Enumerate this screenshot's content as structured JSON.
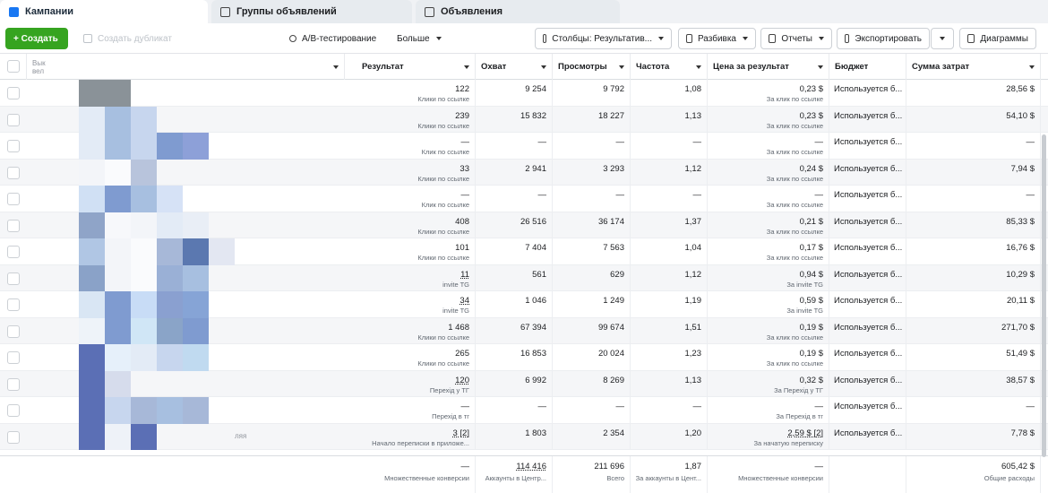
{
  "tabs": [
    {
      "label": "Кампании",
      "icon": "campaign-icon",
      "active": true
    },
    {
      "label": "Группы объявлений",
      "icon": "adsets-icon",
      "active": false
    },
    {
      "label": "Объявления",
      "icon": "ads-icon",
      "active": false
    }
  ],
  "toolbar": {
    "create": "+ Создать",
    "duplicate": "Создать дубликат",
    "ab_test": "A/B-тестирование",
    "more": "Больше",
    "columns": "Столбцы: Результатив...",
    "breakdown": "Разбивка",
    "reports": "Отчеты",
    "export": "Экспортировать",
    "charts": "Диаграммы"
  },
  "headers": {
    "name": "Вык",
    "name2": "вел",
    "result": "Результат",
    "reach": "Охват",
    "views": "Просмотры",
    "frequency": "Частота",
    "cost": "Цена за результат",
    "budget": "Бюджет",
    "spend": "Сумма затрат"
  },
  "rows": [
    {
      "result": "122",
      "result_sub": "Клики по ссылке",
      "reach": "9 254",
      "views": "9 792",
      "freq": "1,08",
      "cost": "0,23 $",
      "cost_sub": "За клик по ссылке",
      "budget": "Используется б...",
      "spend": "28,56 $"
    },
    {
      "result": "239",
      "result_sub": "Клики по ссылке",
      "reach": "15 832",
      "views": "18 227",
      "freq": "1,13",
      "cost": "0,23 $",
      "cost_sub": "За клик по ссылке",
      "budget": "Используется б...",
      "spend": "54,10 $"
    },
    {
      "result": "—",
      "result_sub": "Клик по ссылке",
      "reach": "—",
      "views": "—",
      "freq": "—",
      "cost": "—",
      "cost_sub": "За клик по ссылке",
      "budget": "Используется б...",
      "spend": "—"
    },
    {
      "result": "33",
      "result_sub": "Клики по ссылке",
      "reach": "2 941",
      "views": "3 293",
      "freq": "1,12",
      "cost": "0,24 $",
      "cost_sub": "За клик по ссылке",
      "budget": "Используется б...",
      "spend": "7,94 $"
    },
    {
      "result": "—",
      "result_sub": "Клик по ссылке",
      "reach": "—",
      "views": "—",
      "freq": "—",
      "cost": "—",
      "cost_sub": "За клик по ссылке",
      "budget": "Используется б...",
      "spend": "—"
    },
    {
      "result": "408",
      "result_sub": "Клики по ссылке",
      "reach": "26 516",
      "views": "36 174",
      "freq": "1,37",
      "cost": "0,21 $",
      "cost_sub": "За клик по ссылке",
      "budget": "Используется б...",
      "spend": "85,33 $"
    },
    {
      "result": "101",
      "result_sub": "Клики по ссылке",
      "reach": "7 404",
      "views": "7 563",
      "freq": "1,04",
      "cost": "0,17 $",
      "cost_sub": "За клик по ссылке",
      "budget": "Используется б...",
      "spend": "16,76 $"
    },
    {
      "result": "11",
      "result_sub": "invite TG",
      "reach": "561",
      "views": "629",
      "freq": "1,12",
      "cost": "0,94 $",
      "cost_sub": "За invite TG",
      "budget": "Используется б...",
      "spend": "10,29 $"
    },
    {
      "result": "34",
      "result_sub": "invite TG",
      "reach": "1 046",
      "views": "1 249",
      "freq": "1,19",
      "cost": "0,59 $",
      "cost_sub": "За invite TG",
      "budget": "Используется б...",
      "spend": "20,11 $"
    },
    {
      "result": "1 468",
      "result_sub": "Клики по ссылке",
      "reach": "67 394",
      "views": "99 674",
      "freq": "1,51",
      "cost": "0,19 $",
      "cost_sub": "За клик по ссылке",
      "budget": "Используется б...",
      "spend": "271,70 $"
    },
    {
      "result": "265",
      "result_sub": "Клики по ссылке",
      "reach": "16 853",
      "views": "20 024",
      "freq": "1,23",
      "cost": "0,19 $",
      "cost_sub": "За клик по ссылке",
      "budget": "Используется б...",
      "spend": "51,49 $"
    },
    {
      "result": "120",
      "result_sub": "Перехід у ТГ",
      "reach": "6 992",
      "views": "8 269",
      "freq": "1,13",
      "cost": "0,32 $",
      "cost_sub": "За Перехід у ТГ",
      "budget": "Используется б...",
      "spend": "38,57 $"
    },
    {
      "result": "—",
      "result_sub": "Перехід в тг",
      "reach": "—",
      "views": "—",
      "freq": "—",
      "cost": "—",
      "cost_sub": "За Перехід в тг",
      "budget": "Используется б...",
      "spend": "—"
    },
    {
      "result": "3 [2]",
      "result_sub": "Начало переписки в приложе...",
      "reach": "1 803",
      "views": "2 354",
      "freq": "1,20",
      "cost": "2,59 $ [2]",
      "cost_sub": "За начатую переписку",
      "budget": "Используется б...",
      "spend": "7,78 $"
    }
  ],
  "totals": {
    "result": "—",
    "result_sub": "Множественные конверсии",
    "reach": "114 416",
    "reach_sub": "Аккаунты в Центр...",
    "views": "211 696",
    "views_sub": "Всего",
    "freq": "1,87",
    "freq_sub": "За аккаунты в Цент...",
    "cost": "—",
    "cost_sub": "Множественные конверсии",
    "budget": "",
    "spend": "605,42 $",
    "spend_sub": "Общие расходы"
  },
  "name_fragment": "ляя",
  "colors": {
    "accent": "#1877f2",
    "green": "#36a420",
    "pixel_blues": [
      "#5b6fb5",
      "#7f9bd0",
      "#a7bfe0",
      "#c7d6ee",
      "#e3ebf6",
      "#8a9298"
    ]
  }
}
